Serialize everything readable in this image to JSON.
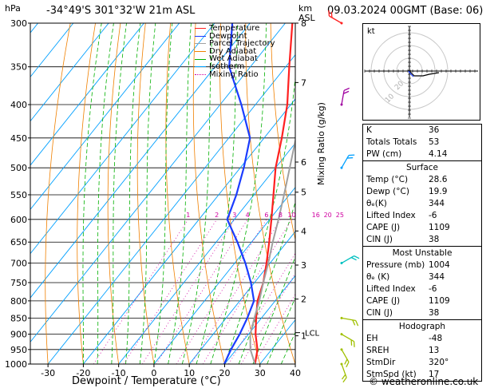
{
  "header": {
    "hpa_label": "hPa",
    "location": "-34°49'S  301°32'W  21m  ASL",
    "km_label": "km",
    "asl_label": "ASL",
    "datetime": "09.03.2024  00GMT  (Base: 06)"
  },
  "legend": [
    {
      "label": "Temperature",
      "color": "#ff2020"
    },
    {
      "label": "Dewpoint",
      "color": "#1a3cff"
    },
    {
      "label": "Parcel Trajectory",
      "color": "#a0a0a0"
    },
    {
      "label": "Dry Adiabat",
      "color": "#f08000"
    },
    {
      "label": "Wet Adiabat",
      "color": "#00b000"
    },
    {
      "label": "Isotherm",
      "color": "#00a0ff"
    },
    {
      "label": "Mixing Ratio",
      "color": "#d000a0"
    }
  ],
  "chart_data": {
    "type": "line",
    "title": "",
    "xlabel": "Dewpoint / Temperature (°C)",
    "ylabel": "",
    "xlim": [
      -35,
      40
    ],
    "ylim": [
      1000,
      300
    ],
    "y_scale": "log",
    "pressure_ticks": [
      "300",
      "350",
      "400",
      "450",
      "500",
      "550",
      "600",
      "650",
      "700",
      "750",
      "800",
      "850",
      "900",
      "950",
      "1000"
    ],
    "temp_ticks": [
      "-30",
      "-20",
      "-10",
      "0",
      "10",
      "20",
      "30",
      "40"
    ],
    "km_axis": [
      {
        "label": "8",
        "p": 300
      },
      {
        "label": "7",
        "p": 370
      },
      {
        "label": "6",
        "p": 490
      },
      {
        "label": "5",
        "p": 545
      },
      {
        "label": "4",
        "p": 625
      },
      {
        "label": "3",
        "p": 705
      },
      {
        "label": "2",
        "p": 795
      },
      {
        "label": "1",
        "p": 905
      }
    ],
    "lcl_label": "LCL",
    "lcl_p": 895,
    "mixing_ratio_label": "Mixing Ratio (g/kg)",
    "mixing_ratio_ticks": [
      "1",
      "2",
      "3",
      "4",
      "6",
      "8",
      "10",
      "16",
      "20",
      "25"
    ],
    "series": [
      {
        "name": "Temperature",
        "color": "#ff2020",
        "points": [
          [
            1000,
            28.6
          ],
          [
            950,
            26
          ],
          [
            900,
            22
          ],
          [
            850,
            18.5
          ],
          [
            800,
            15
          ],
          [
            750,
            12.5
          ],
          [
            700,
            9
          ],
          [
            650,
            5
          ],
          [
            600,
            0.5
          ],
          [
            550,
            -4.5
          ],
          [
            500,
            -10
          ],
          [
            450,
            -15
          ],
          [
            400,
            -21
          ],
          [
            350,
            -29
          ],
          [
            300,
            -38
          ]
        ]
      },
      {
        "name": "Dewpoint",
        "color": "#1a3cff",
        "points": [
          [
            1000,
            19.9
          ],
          [
            950,
            18.5
          ],
          [
            900,
            17.5
          ],
          [
            850,
            16
          ],
          [
            800,
            14
          ],
          [
            750,
            9
          ],
          [
            700,
            3
          ],
          [
            650,
            -4
          ],
          [
            600,
            -12
          ],
          [
            550,
            -15
          ],
          [
            500,
            -19
          ],
          [
            450,
            -24
          ],
          [
            400,
            -34
          ],
          [
            350,
            -46
          ],
          [
            300,
            -55
          ]
        ]
      },
      {
        "name": "Parcel Trajectory",
        "color": "#a0a0a0",
        "points": [
          [
            1000,
            28.6
          ],
          [
            950,
            24
          ],
          [
            900,
            20.5
          ],
          [
            850,
            18
          ],
          [
            800,
            15.5
          ],
          [
            750,
            12.5
          ],
          [
            700,
            9.5
          ],
          [
            650,
            6
          ],
          [
            600,
            2.5
          ],
          [
            550,
            -1.5
          ],
          [
            500,
            -6
          ],
          [
            450,
            -11
          ],
          [
            400,
            -16.5
          ],
          [
            350,
            -23
          ]
        ]
      }
    ]
  },
  "hodograph": {
    "label": "kt"
  },
  "indices": [
    {
      "label": "K",
      "value": "36"
    },
    {
      "label": "Totals Totals",
      "value": "53"
    },
    {
      "label": "PW (cm)",
      "value": "4.14"
    }
  ],
  "surface": {
    "title": "Surface",
    "rows": [
      {
        "label": "Temp (°C)",
        "value": "28.6"
      },
      {
        "label": "Dewp (°C)",
        "value": "19.9"
      },
      {
        "label": "θₑ(K)",
        "value": "344"
      },
      {
        "label": "Lifted Index",
        "value": "-6"
      },
      {
        "label": "CAPE (J)",
        "value": "1109"
      },
      {
        "label": "CIN (J)",
        "value": "38"
      }
    ]
  },
  "most_unstable": {
    "title": "Most Unstable",
    "rows": [
      {
        "label": "Pressure (mb)",
        "value": "1004"
      },
      {
        "label": "θₑ (K)",
        "value": "344"
      },
      {
        "label": "Lifted Index",
        "value": "-6"
      },
      {
        "label": "CAPE (J)",
        "value": "1109"
      },
      {
        "label": "CIN (J)",
        "value": "38"
      }
    ]
  },
  "hodograph_table": {
    "title": "Hodograph",
    "rows": [
      {
        "label": "EH",
        "value": "-48"
      },
      {
        "label": "SREH",
        "value": "13"
      },
      {
        "label": "StmDir",
        "value": "320°"
      },
      {
        "label": "StmSpd (kt)",
        "value": "17"
      }
    ]
  },
  "footer": {
    "copyright": "© weatheronline.co.uk"
  }
}
